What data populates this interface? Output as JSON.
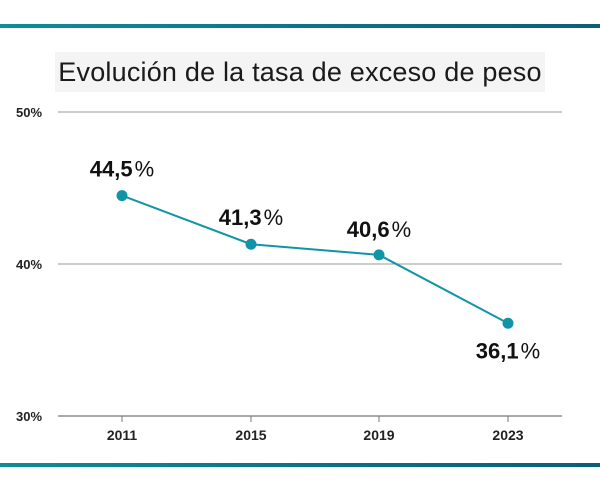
{
  "chart_data": {
    "type": "line",
    "title": "Evolución de la tasa de exceso de peso",
    "x": [
      "2011",
      "2015",
      "2019",
      "2023"
    ],
    "series": [
      {
        "values": [
          44.5,
          41.3,
          40.6,
          36.1
        ],
        "color": "#1195a6"
      }
    ],
    "value_labels": [
      "44,5",
      "41,3",
      "40,6",
      "36,1"
    ],
    "value_unit": "%",
    "ylim": [
      30,
      50
    ],
    "yticks": [
      {
        "value": 30,
        "label": "30%"
      },
      {
        "value": 40,
        "label": "40%"
      },
      {
        "value": 50,
        "label": "50%"
      }
    ],
    "grid": true,
    "legend": "none"
  }
}
